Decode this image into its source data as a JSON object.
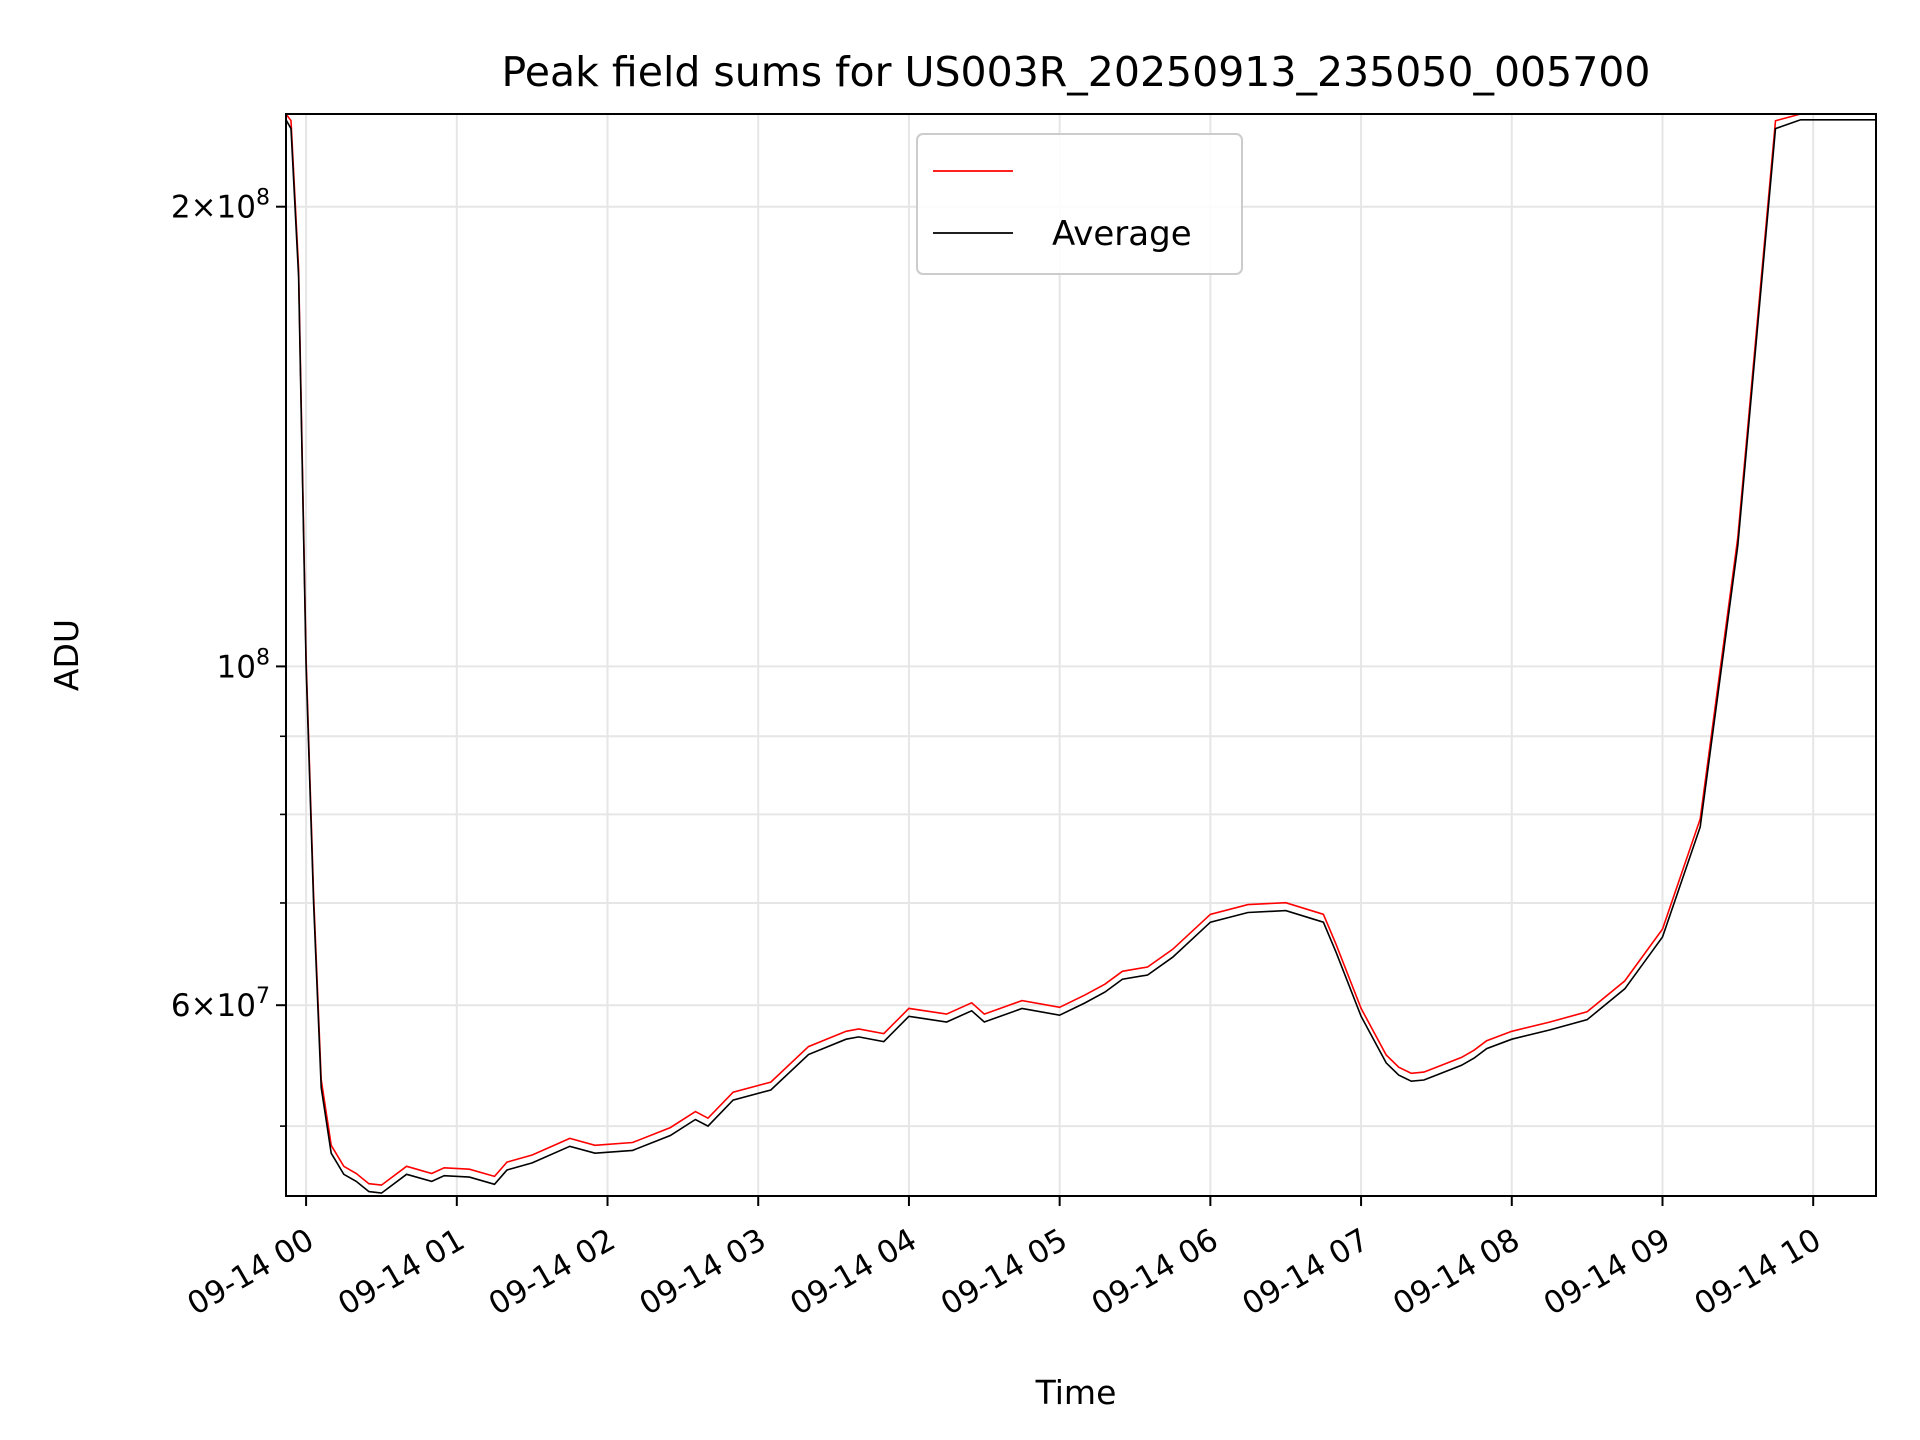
{
  "chart_data": {
    "type": "line",
    "title": "Peak field sums for US003R_20250913_235050_005700",
    "xlabel": "Time",
    "ylabel": "ADU",
    "yscale": "log",
    "ylim": [
      45000000,
      230000000
    ],
    "xlim": [
      "2025-09-13 23:52",
      "2025-09-14 10:25"
    ],
    "grid": true,
    "legend_position": "top-center",
    "colors": {
      "peak": "#ff0000",
      "average": "#000000"
    },
    "x_ticks": [
      "09-14 00",
      "09-14 01",
      "09-14 02",
      "09-14 03",
      "09-14 04",
      "09-14 05",
      "09-14 06",
      "09-14 07",
      "09-14 08",
      "09-14 09",
      "09-14 10"
    ],
    "y_ticks": [
      {
        "value": 200000000,
        "mantissa": "2×10",
        "exp": "8"
      },
      {
        "value": 100000000,
        "mantissa": "10",
        "exp": "8"
      },
      {
        "value": 60000000,
        "mantissa": "6×10",
        "exp": "7"
      }
    ],
    "x": [
      "2025-09-13 23:52",
      "2025-09-13 23:54",
      "2025-09-13 23:57",
      "2025-09-14 00:00",
      "2025-09-14 00:03",
      "2025-09-14 00:06",
      "2025-09-14 00:10",
      "2025-09-14 00:15",
      "2025-09-14 00:20",
      "2025-09-14 00:25",
      "2025-09-14 00:30",
      "2025-09-14 00:40",
      "2025-09-14 00:50",
      "2025-09-14 00:55",
      "2025-09-14 01:05",
      "2025-09-14 01:15",
      "2025-09-14 01:20",
      "2025-09-14 01:30",
      "2025-09-14 01:45",
      "2025-09-14 01:55",
      "2025-09-14 02:10",
      "2025-09-14 02:25",
      "2025-09-14 02:35",
      "2025-09-14 02:40",
      "2025-09-14 02:50",
      "2025-09-14 03:05",
      "2025-09-14 03:20",
      "2025-09-14 03:35",
      "2025-09-14 03:40",
      "2025-09-14 03:50",
      "2025-09-14 04:00",
      "2025-09-14 04:15",
      "2025-09-14 04:25",
      "2025-09-14 04:30",
      "2025-09-14 04:45",
      "2025-09-14 05:00",
      "2025-09-14 05:10",
      "2025-09-14 05:18",
      "2025-09-14 05:25",
      "2025-09-14 05:35",
      "2025-09-14 05:45",
      "2025-09-14 06:00",
      "2025-09-14 06:15",
      "2025-09-14 06:30",
      "2025-09-14 06:45",
      "2025-09-14 06:50",
      "2025-09-14 07:00",
      "2025-09-14 07:10",
      "2025-09-14 07:15",
      "2025-09-14 07:20",
      "2025-09-14 07:25",
      "2025-09-14 07:30",
      "2025-09-14 07:40",
      "2025-09-14 07:45",
      "2025-09-14 07:50",
      "2025-09-14 08:00",
      "2025-09-14 08:15",
      "2025-09-14 08:30",
      "2025-09-14 08:45",
      "2025-09-14 09:00",
      "2025-09-14 09:15",
      "2025-09-14 09:30",
      "2025-09-14 09:45",
      "2025-09-14 09:55",
      "2025-09-14 10:00",
      "2025-09-14 10:05",
      "2025-09-14 10:10",
      "2025-09-14 10:15",
      "2025-09-14 10:20",
      "2025-09-14 10:25"
    ],
    "series": [
      {
        "name": "Average",
        "values": [
          228000000,
          225000000,
          180000000,
          100000000,
          70000000,
          53000000,
          48000000,
          46500000,
          46000000,
          45300000,
          45200000,
          46500000,
          46000000,
          46400000,
          46300000,
          45800000,
          46800000,
          47300000,
          48500000,
          48000000,
          48200000,
          49300000,
          50500000,
          50000000,
          52000000,
          52800000,
          55700000,
          57000000,
          57200000,
          56800000,
          59000000,
          58500000,
          59500000,
          58500000,
          59700000,
          59100000,
          60200000,
          61200000,
          62400000,
          62800000,
          64500000,
          68000000,
          69000000,
          69200000,
          68000000,
          65000000,
          59000000,
          55000000,
          54000000,
          53500000,
          53600000,
          54000000,
          54800000,
          55400000,
          56200000,
          57000000,
          57800000,
          58700000,
          61500000,
          66500000,
          78500000,
          120000000,
          225000000,
          228000000,
          228000000,
          228000000,
          228000000,
          228000000,
          228000000,
          228000000
        ]
      }
    ]
  }
}
